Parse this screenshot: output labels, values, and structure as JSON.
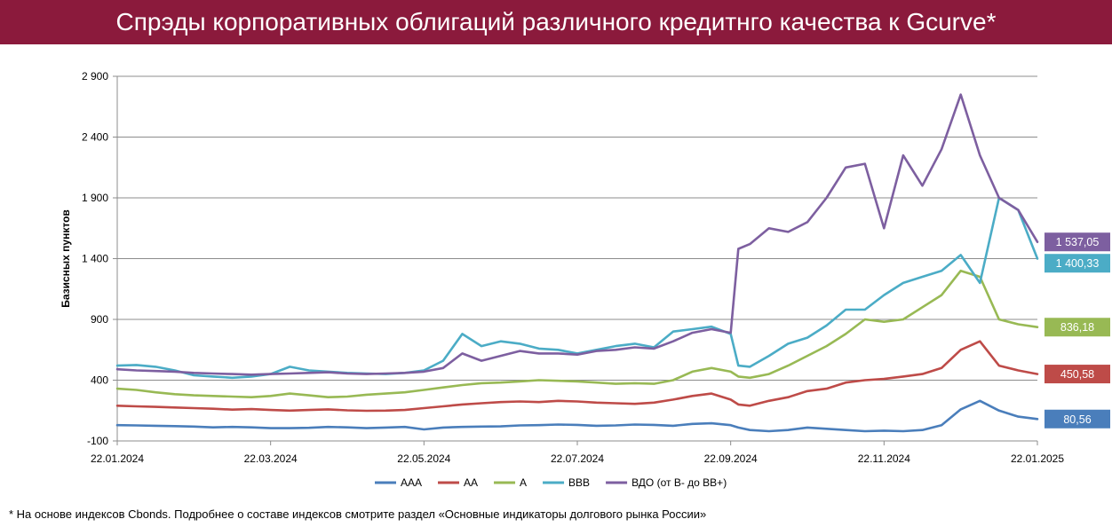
{
  "header": {
    "title": "Спрэды корпоративных облигаций  различного кредитнго качества к Gcurve*"
  },
  "footnote": "* На основе индексов Cbonds. Подробнее о составе индексов смотрите раздел «Основные индикаторы долгового рынка России»",
  "chart_data": {
    "type": "line",
    "title": "Спрэды корпоративных облигаций  различного кредитнго качества к Gcurve*",
    "ylabel": "Базисных пунктов",
    "xlabel": "",
    "ylim": [
      -100,
      2900
    ],
    "y_ticks": [
      -100,
      400,
      900,
      1400,
      1900,
      2400,
      2900
    ],
    "y_tick_labels": [
      "-100",
      "400",
      "900",
      "1 400",
      "1 900",
      "2 400",
      "2 900"
    ],
    "x_tick_labels": [
      "22.01.2024",
      "22.03.2024",
      "22.05.2024",
      "22.07.2024",
      "22.09.2024",
      "22.11.2024",
      "22.01.2025"
    ],
    "x_tick_positions": [
      0,
      2,
      4,
      6,
      8,
      10,
      12
    ],
    "grid": true,
    "legend_position": "bottom",
    "x": [
      0,
      0.25,
      0.5,
      0.75,
      1,
      1.25,
      1.5,
      1.75,
      2,
      2.25,
      2.5,
      2.75,
      3,
      3.25,
      3.5,
      3.75,
      4,
      4.25,
      4.5,
      4.75,
      5,
      5.25,
      5.5,
      5.75,
      6,
      6.25,
      6.5,
      6.75,
      7,
      7.25,
      7.5,
      7.75,
      8,
      8.1,
      8.25,
      8.5,
      8.75,
      9,
      9.25,
      9.5,
      9.75,
      10,
      10.25,
      10.5,
      10.75,
      11,
      11.25,
      11.5,
      11.75,
      12
    ],
    "series": [
      {
        "name": "AAA",
        "color": "#4a7ebb",
        "end_label": "80,56",
        "values": [
          30,
          28,
          25,
          22,
          18,
          12,
          15,
          12,
          5,
          5,
          8,
          15,
          12,
          5,
          10,
          15,
          -5,
          10,
          15,
          18,
          20,
          28,
          30,
          35,
          32,
          25,
          28,
          35,
          32,
          25,
          40,
          45,
          30,
          10,
          -10,
          -20,
          -10,
          10,
          0,
          -10,
          -20,
          -15,
          -20,
          -10,
          30,
          160,
          230,
          150,
          100,
          80.56
        ]
      },
      {
        "name": "AA",
        "color": "#be4b48",
        "end_label": "450,58",
        "values": [
          190,
          185,
          180,
          175,
          170,
          165,
          158,
          162,
          155,
          150,
          155,
          160,
          152,
          148,
          150,
          155,
          170,
          185,
          200,
          210,
          220,
          225,
          220,
          230,
          225,
          215,
          210,
          205,
          215,
          240,
          270,
          290,
          240,
          200,
          190,
          230,
          260,
          310,
          330,
          380,
          400,
          410,
          430,
          450,
          500,
          650,
          720,
          520,
          480,
          450.58
        ]
      },
      {
        "name": "A",
        "color": "#98b954",
        "end_label": "836,18",
        "values": [
          330,
          320,
          300,
          285,
          275,
          270,
          265,
          260,
          270,
          290,
          275,
          260,
          265,
          280,
          290,
          300,
          320,
          340,
          360,
          375,
          380,
          390,
          400,
          395,
          390,
          380,
          370,
          375,
          370,
          400,
          470,
          500,
          470,
          430,
          420,
          450,
          520,
          600,
          680,
          780,
          900,
          880,
          900,
          1000,
          1100,
          1300,
          1250,
          900,
          860,
          836.18
        ]
      },
      {
        "name": "BBB",
        "color": "#4bacc6",
        "end_label": "1 400,33",
        "values": [
          520,
          525,
          510,
          480,
          440,
          430,
          420,
          430,
          450,
          510,
          480,
          470,
          460,
          455,
          450,
          460,
          480,
          560,
          780,
          680,
          720,
          700,
          660,
          650,
          620,
          650,
          680,
          700,
          670,
          800,
          820,
          840,
          780,
          520,
          510,
          600,
          700,
          750,
          850,
          980,
          980,
          1100,
          1200,
          1250,
          1300,
          1430,
          1200,
          1900,
          1800,
          1400.33
        ]
      },
      {
        "name": "ВДО (от B- до BB+)",
        "color": "#7d5fa0",
        "end_label": "1 537,05",
        "values": [
          490,
          480,
          475,
          470,
          460,
          455,
          450,
          445,
          450,
          455,
          460,
          465,
          455,
          450,
          455,
          460,
          470,
          500,
          620,
          560,
          600,
          640,
          620,
          620,
          610,
          640,
          650,
          670,
          660,
          720,
          790,
          820,
          790,
          1480,
          1520,
          1650,
          1620,
          1700,
          1900,
          2150,
          2180,
          1650,
          2250,
          2000,
          2300,
          2750,
          2250,
          1900,
          1800,
          1537.05
        ]
      }
    ]
  }
}
